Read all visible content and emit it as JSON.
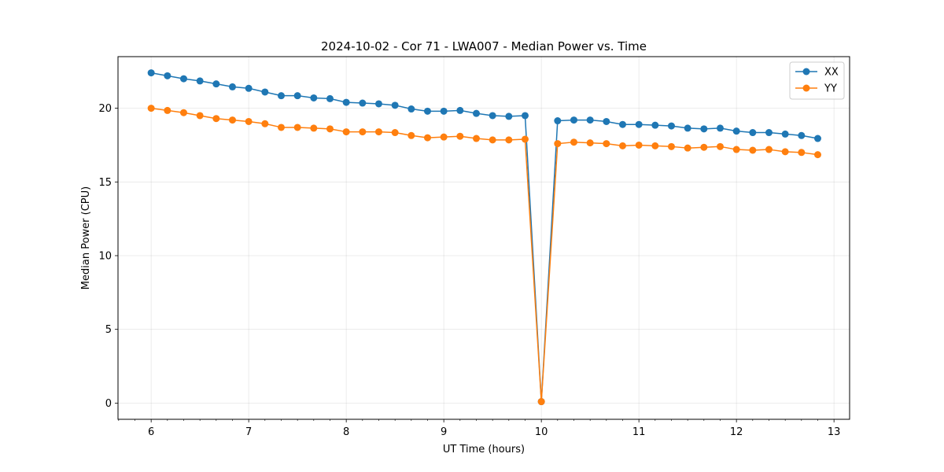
{
  "chart_data": {
    "type": "line",
    "title": "2024-10-02 - Cor 71 - LWA007 - Median Power vs. Time",
    "xlabel": "UT Time (hours)",
    "ylabel": "Median Power (CPU)",
    "xlim": [
      5.66,
      13.16
    ],
    "ylim": [
      -1.1,
      23.5
    ],
    "xticks": [
      6,
      7,
      8,
      9,
      10,
      11,
      12,
      13
    ],
    "xtick_labels": [
      "6",
      "7",
      "8",
      "9",
      "10",
      "11",
      "12",
      "13"
    ],
    "yticks": [
      0,
      5,
      10,
      15,
      20
    ],
    "ytick_labels": [
      "0",
      "5",
      "10",
      "15",
      "20"
    ],
    "grid": true,
    "legend": "top-right",
    "x": [
      6.0,
      6.1667,
      6.3333,
      6.5,
      6.6667,
      6.8333,
      7.0,
      7.1667,
      7.3333,
      7.5,
      7.6667,
      7.8333,
      8.0,
      8.1667,
      8.3333,
      8.5,
      8.6667,
      8.8333,
      9.0,
      9.1667,
      9.3333,
      9.5,
      9.6667,
      9.8333,
      10.0,
      10.1667,
      10.3333,
      10.5,
      10.6667,
      10.8333,
      11.0,
      11.1667,
      11.3333,
      11.5,
      11.6667,
      11.8333,
      12.0,
      12.1667,
      12.3333,
      12.5,
      12.6667,
      12.8333
    ],
    "series": [
      {
        "name": "XX",
        "color": "#1f77b4",
        "values": [
          22.4,
          22.2,
          22.0,
          21.85,
          21.65,
          21.45,
          21.35,
          21.1,
          20.85,
          20.85,
          20.7,
          20.65,
          20.4,
          20.35,
          20.3,
          20.2,
          19.95,
          19.8,
          19.8,
          19.85,
          19.65,
          19.5,
          19.45,
          19.5,
          0.1,
          19.15,
          19.2,
          19.2,
          19.1,
          18.9,
          18.9,
          18.85,
          18.8,
          18.65,
          18.6,
          18.65,
          18.45,
          18.35,
          18.35,
          18.25,
          18.15,
          17.95
        ]
      },
      {
        "name": "YY",
        "color": "#ff7f0e",
        "values": [
          20.0,
          19.85,
          19.7,
          19.5,
          19.3,
          19.2,
          19.1,
          18.95,
          18.7,
          18.7,
          18.65,
          18.6,
          18.4,
          18.4,
          18.4,
          18.35,
          18.15,
          18.0,
          18.05,
          18.1,
          17.95,
          17.85,
          17.85,
          17.9,
          0.1,
          17.6,
          17.7,
          17.65,
          17.6,
          17.45,
          17.5,
          17.45,
          17.4,
          17.3,
          17.35,
          17.4,
          17.2,
          17.15,
          17.2,
          17.05,
          17.0,
          16.85
        ]
      }
    ]
  }
}
